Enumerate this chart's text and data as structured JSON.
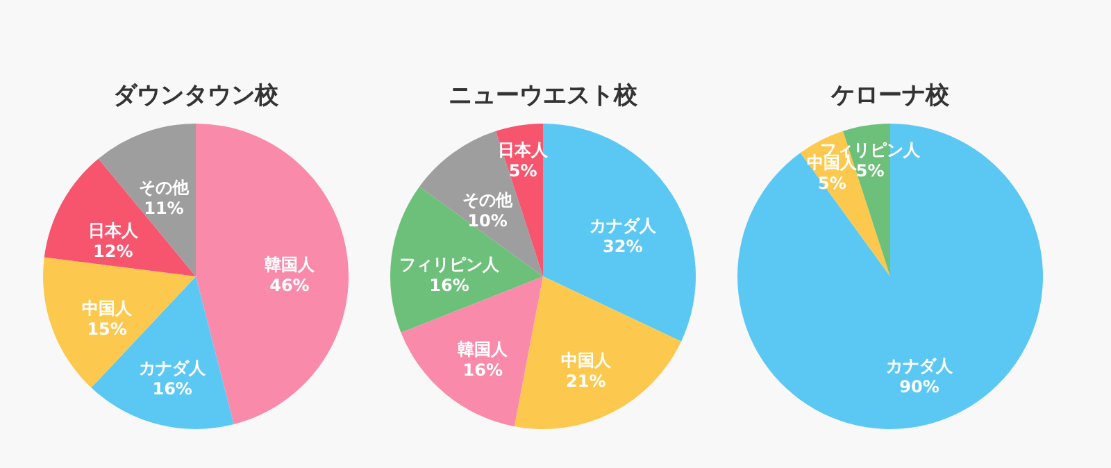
{
  "chart_data": [
    {
      "type": "pie",
      "title": "ダウンタウン校",
      "categories": [
        "韓国人",
        "カナダ人",
        "中国人",
        "日本人",
        "その他"
      ],
      "values": [
        46,
        16,
        15,
        12,
        11
      ],
      "value_labels": [
        "46%",
        "16%",
        "15%",
        "12%",
        "11%"
      ],
      "colors": [
        "#f98aaa",
        "#5bc8f4",
        "#fcc94e",
        "#f7546e",
        "#9e9e9e"
      ]
    },
    {
      "type": "pie",
      "title": "ニューウエスト校",
      "categories": [
        "カナダ人",
        "中国人",
        "韓国人",
        "フィリピン人",
        "その他",
        "日本人"
      ],
      "values": [
        32,
        21,
        16,
        16,
        10,
        5
      ],
      "value_labels": [
        "32%",
        "21%",
        "16%",
        "16%",
        "10%",
        "5%"
      ],
      "colors": [
        "#5bc8f4",
        "#fcc94e",
        "#f98aaa",
        "#6cc07a",
        "#9e9e9e",
        "#f7546e"
      ]
    },
    {
      "type": "pie",
      "title": "ケローナ校",
      "categories": [
        "カナダ人",
        "中国人",
        "フィリピン人"
      ],
      "values": [
        90,
        5,
        5
      ],
      "value_labels": [
        "90%",
        "5%",
        "5%"
      ],
      "colors": [
        "#5bc8f4",
        "#fcc94e",
        "#6cc07a"
      ]
    }
  ]
}
